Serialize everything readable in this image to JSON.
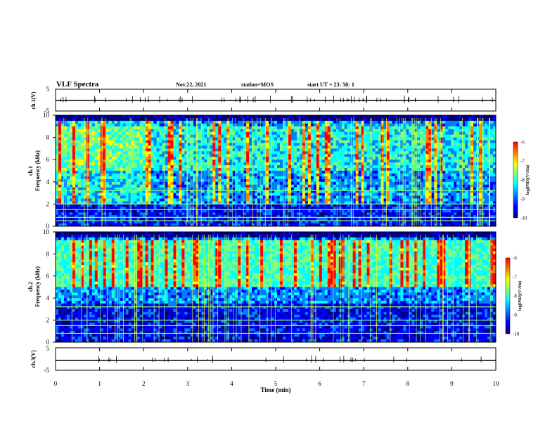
{
  "header": {
    "title": "VLF Spectra",
    "date": "Nov.22, 2021",
    "station": "station=MOS",
    "start": "start  UT  =   23: 50: 1"
  },
  "chart_data": [
    {
      "type": "line",
      "name": "ch1_waveform",
      "ylabel": "ch.1(V)",
      "ylim": [
        -5,
        5
      ],
      "yticks": [
        "5",
        "-5"
      ],
      "xlim": [
        0,
        10
      ],
      "baseline_v": -0.3
    },
    {
      "type": "heatmap",
      "name": "ch1_spectrogram",
      "ylabel": "ch.1\nFrequency (kHz)",
      "ylabel_line1": "ch.1",
      "ylabel_line2": "Frequency (kHz)",
      "ylim": [
        0,
        10
      ],
      "yticks": [
        "0",
        "2",
        "4",
        "6",
        "8",
        "10"
      ],
      "xlim": [
        0,
        10
      ],
      "colorbar": {
        "label": "log(PSD)(V²/Hz)",
        "range": [
          -10,
          -6
        ],
        "ticks": [
          "-6",
          "-7",
          "-8",
          "-9",
          "-10"
        ]
      },
      "horizontal_lines_khz": [
        0.5,
        0.8,
        1.5,
        2.0,
        3.2
      ]
    },
    {
      "type": "heatmap",
      "name": "ch2_spectrogram",
      "ylabel": "ch.2\nFrequency (kHz)",
      "ylabel_line1": "ch.2",
      "ylabel_line2": "Frequency (kHz)",
      "ylim": [
        0,
        10
      ],
      "yticks": [
        "0",
        "2",
        "4",
        "6",
        "8",
        "10"
      ],
      "xlim": [
        0,
        10
      ],
      "colorbar": {
        "label": "log(PSD)(V²/Hz)",
        "range": [
          -10,
          -6
        ],
        "ticks": [
          "-6",
          "-7",
          "-8",
          "-9",
          "-10"
        ]
      },
      "horizontal_lines_khz": [
        0.8,
        1.5,
        2.0,
        3.2
      ]
    },
    {
      "type": "line",
      "name": "ch3_waveform",
      "ylabel": "ch.3(V)",
      "ylim": [
        -5,
        5
      ],
      "yticks": [
        "5",
        "-5"
      ],
      "xlim": [
        0,
        10
      ],
      "baseline_v": -0.5
    }
  ],
  "xaxis": {
    "label": "Time  (min)",
    "ticks": [
      "0",
      "1",
      "2",
      "3",
      "4",
      "5",
      "6",
      "7",
      "8",
      "9",
      "10"
    ]
  },
  "colors": {
    "colormap": [
      "#00007f",
      "#0000ff",
      "#007fff",
      "#00ffff",
      "#7fff7f",
      "#ffff00",
      "#ff7f00",
      "#ff0000"
    ]
  }
}
